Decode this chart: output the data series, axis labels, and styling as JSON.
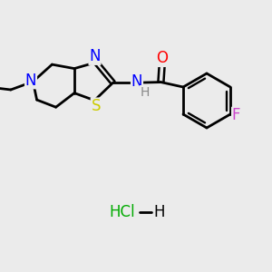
{
  "background_color": "#ebebeb",
  "line_color": "#000000",
  "bond_width": 2.0,
  "font_size": 12,
  "atom_colors": {
    "S": "#cccc00",
    "N": "#0000ff",
    "O": "#ff0000",
    "F": "#cc44cc",
    "Cl": "#00aa00",
    "H_nh": "#888888",
    "H_hcl": "#000000"
  }
}
